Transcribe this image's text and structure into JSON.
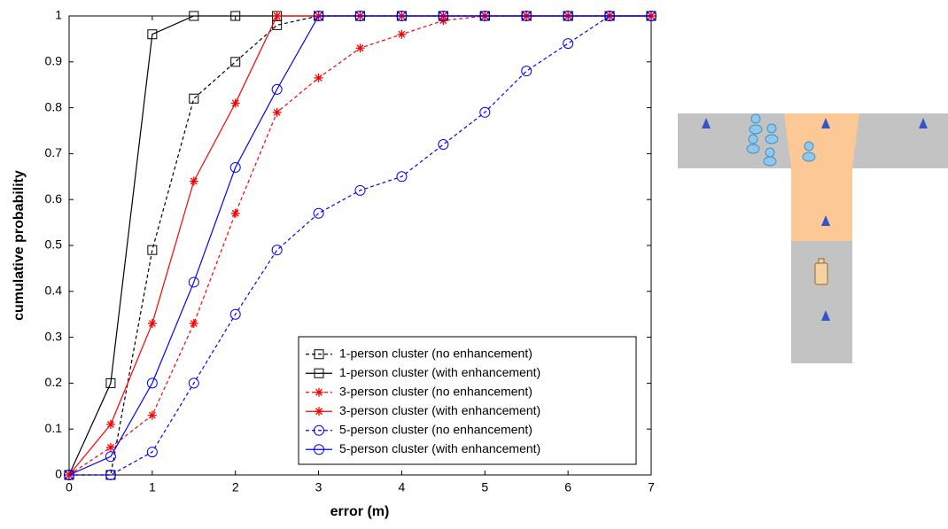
{
  "chart_data": {
    "type": "line",
    "x_label": "error (m)",
    "y_label": "cumulative probability",
    "x": [
      0,
      0.5,
      1,
      1.5,
      2,
      2.5,
      3,
      3.5,
      4,
      4.5,
      5,
      5.5,
      6,
      6.5,
      7
    ],
    "xlim": [
      0,
      7
    ],
    "ylim": [
      0,
      1
    ],
    "xticks": [
      0,
      1,
      2,
      3,
      4,
      5,
      6,
      7
    ],
    "yticks": [
      0,
      0.1,
      0.2,
      0.3,
      0.4,
      0.5,
      0.6,
      0.7,
      0.8,
      0.9,
      1
    ],
    "legend": "lower-right",
    "series": [
      {
        "name": "1-person cluster (no enhancement)",
        "color": "#000000",
        "dashed": true,
        "marker": "square",
        "values": [
          0,
          0,
          0.49,
          0.82,
          0.9,
          0.98,
          1,
          1,
          1,
          1,
          1,
          1,
          1,
          1,
          1
        ]
      },
      {
        "name": "1-person cluster (with enhancement)",
        "color": "#000000",
        "dashed": false,
        "marker": "square",
        "values": [
          0,
          0.2,
          0.96,
          1,
          1,
          1,
          1,
          1,
          1,
          1,
          1,
          1,
          1,
          1,
          1
        ]
      },
      {
        "name": "3-person cluster (no enhancement)",
        "color": "#ff0000",
        "dashed": true,
        "marker": "star",
        "values": [
          0,
          0.06,
          0.13,
          0.33,
          0.57,
          0.79,
          0.865,
          0.93,
          0.96,
          0.99,
          1,
          1,
          1,
          1,
          1
        ]
      },
      {
        "name": "3-person cluster (with enhancement)",
        "color": "#ff0000",
        "dashed": false,
        "marker": "star",
        "values": [
          0,
          0.11,
          0.33,
          0.64,
          0.81,
          1,
          1,
          1,
          1,
          1,
          1,
          1,
          1,
          1,
          1
        ]
      },
      {
        "name": "5-person cluster (no enhancement)",
        "color": "#0000ff",
        "dashed": true,
        "marker": "circle",
        "values": [
          0,
          0,
          0.05,
          0.2,
          0.35,
          0.49,
          0.57,
          0.62,
          0.65,
          0.72,
          0.79,
          0.88,
          0.94,
          1,
          1
        ]
      },
      {
        "name": "5-person cluster (with enhancement)",
        "color": "#0000ff",
        "dashed": false,
        "marker": "circle",
        "values": [
          0,
          0.04,
          0.2,
          0.42,
          0.67,
          0.84,
          1,
          1,
          1,
          1,
          1,
          1,
          1,
          1,
          1
        ]
      }
    ]
  }
}
